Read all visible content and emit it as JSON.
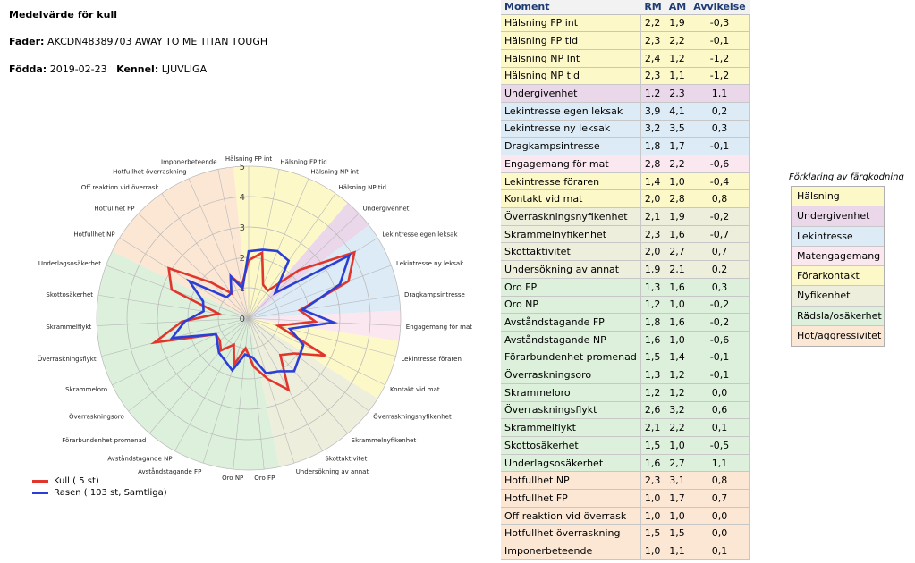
{
  "header": {
    "title": "Medelvärde för kull",
    "fader_label": "Fader:",
    "fader_value": "AKCDN48389703   AWAY TO ME TITAN TOUGH",
    "fodda_label": "Födda:",
    "fodda_value": "2019-02-23",
    "kennel_label": "Kennel:",
    "kennel_value": "LJUVLIGA"
  },
  "colors": {
    "Hälsning": "#fdf8c8",
    "Undergivenhet": "#ead7ea",
    "Lekintresse": "#dcebf6",
    "Matengagemang": "#fbe7ef",
    "Förarkontakt": "#fdf8c8",
    "Nyfikenhet": "#eeeedd",
    "Rädsla/osäkerhet": "#dcf0dc",
    "Hot/aggressivitet": "#fbe7d4",
    "kull_line": "#e0362c",
    "rasen_line": "#2b3fd6"
  },
  "table": {
    "headers": [
      "Moment",
      "RM",
      "AM",
      "Avvikelse"
    ],
    "rows": [
      {
        "moment": "Hälsning FP int",
        "rm": "2,2",
        "am": "1,9",
        "dev": "-0,3",
        "cat": "Hälsning"
      },
      {
        "moment": "Hälsning FP tid",
        "rm": "2,3",
        "am": "2,2",
        "dev": "-0,1",
        "cat": "Hälsning"
      },
      {
        "moment": "Hälsning NP Int",
        "rm": "2,4",
        "am": "1,2",
        "dev": "-1,2",
        "cat": "Hälsning"
      },
      {
        "moment": "Hälsning NP tid",
        "rm": "2,3",
        "am": "1,1",
        "dev": "-1,2",
        "cat": "Hälsning"
      },
      {
        "moment": "Undergivenhet",
        "rm": "1,2",
        "am": "2,3",
        "dev": "1,1",
        "cat": "Undergivenhet"
      },
      {
        "moment": "Lekintresse egen leksak",
        "rm": "3,9",
        "am": "4,1",
        "dev": "0,2",
        "cat": "Lekintresse"
      },
      {
        "moment": "Lekintresse ny leksak",
        "rm": "3,2",
        "am": "3,5",
        "dev": "0,3",
        "cat": "Lekintresse"
      },
      {
        "moment": "Dragkampsintresse",
        "rm": "1,8",
        "am": "1,7",
        "dev": "-0,1",
        "cat": "Lekintresse"
      },
      {
        "moment": "Engagemang för mat",
        "rm": "2,8",
        "am": "2,2",
        "dev": "-0,6",
        "cat": "Matengagemang"
      },
      {
        "moment": "Lekintresse föraren",
        "rm": "1,4",
        "am": "1,0",
        "dev": "-0,4",
        "cat": "Förarkontakt"
      },
      {
        "moment": "Kontakt vid mat",
        "rm": "2,0",
        "am": "2,8",
        "dev": "0,8",
        "cat": "Förarkontakt"
      },
      {
        "moment": "Överraskningsnyfikenhet",
        "rm": "2,1",
        "am": "1,9",
        "dev": "-0,2",
        "cat": "Nyfikenhet"
      },
      {
        "moment": "Skrammelnyfikenhet",
        "rm": "2,3",
        "am": "1,6",
        "dev": "-0,7",
        "cat": "Nyfikenhet"
      },
      {
        "moment": "Skottaktivitet",
        "rm": "2,0",
        "am": "2,7",
        "dev": "0,7",
        "cat": "Nyfikenhet"
      },
      {
        "moment": "Undersökning av annat",
        "rm": "1,9",
        "am": "2,1",
        "dev": "0,2",
        "cat": "Nyfikenhet"
      },
      {
        "moment": "Oro FP",
        "rm": "1,3",
        "am": "1,6",
        "dev": "0,3",
        "cat": "Rädsla/osäkerhet"
      },
      {
        "moment": "Oro NP",
        "rm": "1,2",
        "am": "1,0",
        "dev": "-0,2",
        "cat": "Rädsla/osäkerhet"
      },
      {
        "moment": "Avståndstagande FP",
        "rm": "1,8",
        "am": "1,6",
        "dev": "-0,2",
        "cat": "Rädsla/osäkerhet"
      },
      {
        "moment": "Avståndstagande NP",
        "rm": "1,6",
        "am": "1,0",
        "dev": "-0,6",
        "cat": "Rädsla/osäkerhet"
      },
      {
        "moment": "Förarbundenhet promenad",
        "rm": "1,5",
        "am": "1,4",
        "dev": "-0,1",
        "cat": "Rädsla/osäkerhet"
      },
      {
        "moment": "Överraskningsoro",
        "rm": "1,3",
        "am": "1,2",
        "dev": "-0,1",
        "cat": "Rädsla/osäkerhet"
      },
      {
        "moment": "Skrammeloro",
        "rm": "1,2",
        "am": "1,2",
        "dev": "0,0",
        "cat": "Rädsla/osäkerhet"
      },
      {
        "moment": "Överraskningsflykt",
        "rm": "2,6",
        "am": "3,2",
        "dev": "0,6",
        "cat": "Rädsla/osäkerhet"
      },
      {
        "moment": "Skrammelflykt",
        "rm": "2,1",
        "am": "2,2",
        "dev": "0,1",
        "cat": "Rädsla/osäkerhet"
      },
      {
        "moment": "Skottosäkerhet",
        "rm": "1,5",
        "am": "1,0",
        "dev": "-0,5",
        "cat": "Rädsla/osäkerhet"
      },
      {
        "moment": "Underlagsosäkerhet",
        "rm": "1,6",
        "am": "2,7",
        "dev": "1,1",
        "cat": "Rädsla/osäkerhet"
      },
      {
        "moment": "Hotfullhet NP",
        "rm": "2,3",
        "am": "3,1",
        "dev": "0,8",
        "cat": "Hot/aggressivitet"
      },
      {
        "moment": "Hotfullhet FP",
        "rm": "1,0",
        "am": "1,7",
        "dev": "0,7",
        "cat": "Hot/aggressivitet"
      },
      {
        "moment": "Off reaktion vid överrask",
        "rm": "1,0",
        "am": "1,0",
        "dev": "0,0",
        "cat": "Hot/aggressivitet"
      },
      {
        "moment": "Hotfullhet överraskning",
        "rm": "1,5",
        "am": "1,5",
        "dev": "0,0",
        "cat": "Hot/aggressivitet"
      },
      {
        "moment": "Imponerbeteende",
        "rm": "1,0",
        "am": "1,1",
        "dev": "0,1",
        "cat": "Hot/aggressivitet"
      }
    ]
  },
  "color_legend": {
    "title": "Förklaring av färgkodning",
    "items": [
      "Hälsning",
      "Undergivenhet",
      "Lekintresse",
      "Matengagemang",
      "Förarkontakt",
      "Nyfikenhet",
      "Rädsla/osäkerhet",
      "Hot/aggressivitet"
    ]
  },
  "chart_data": {
    "type": "radar",
    "title": "",
    "rlim": [
      0,
      5
    ],
    "ticks": [
      "0",
      "1",
      "2",
      "3",
      "4",
      "5"
    ],
    "axes": [
      "Hälsning FP int",
      "Hälsning FP tid",
      "Hälsning NP int",
      "Hälsning NP tid",
      "Undergivenhet",
      "Lekintresse egen leksak",
      "Lekintresse ny leksak",
      "Dragkampsintresse",
      "Engagemang för mat",
      "Lekintresse föraren",
      "Kontakt vid mat",
      "Överraskningsnyfikenhet",
      "Skrammelnyfikenhet",
      "Skottaktivitet",
      "Undersökning av annat",
      "Oro FP",
      "Oro NP",
      "Avståndstagande FP",
      "Avståndstagande NP",
      "Förarbundenhet promenad",
      "Överraskningsoro",
      "Skrammeloro",
      "Överraskningsflykt",
      "Skrammelflykt",
      "Skottosäkerhet",
      "Underlagsosäkerhet",
      "Hotfullhet NP",
      "Hotfullhet FP",
      "Off reaktion vid överrask",
      "Hotfullhet överraskning",
      "Imponerbeteende"
    ],
    "axis_categories": [
      "Hälsning",
      "Hälsning",
      "Hälsning",
      "Hälsning",
      "Undergivenhet",
      "Lekintresse",
      "Lekintresse",
      "Lekintresse",
      "Matengagemang",
      "Förarkontakt",
      "Förarkontakt",
      "Nyfikenhet",
      "Nyfikenhet",
      "Nyfikenhet",
      "Nyfikenhet",
      "Rädsla/osäkerhet",
      "Rädsla/osäkerhet",
      "Rädsla/osäkerhet",
      "Rädsla/osäkerhet",
      "Rädsla/osäkerhet",
      "Rädsla/osäkerhet",
      "Rädsla/osäkerhet",
      "Rädsla/osäkerhet",
      "Rädsla/osäkerhet",
      "Rädsla/osäkerhet",
      "Rädsla/osäkerhet",
      "Hot/aggressivitet",
      "Hot/aggressivitet",
      "Hot/aggressivitet",
      "Hot/aggressivitet",
      "Hot/aggressivitet"
    ],
    "series": [
      {
        "name": "Kull ( 5 st)",
        "values": [
          1.9,
          2.2,
          1.2,
          1.1,
          2.3,
          4.1,
          3.5,
          1.7,
          2.2,
          1.0,
          2.8,
          1.9,
          1.6,
          2.7,
          2.1,
          1.6,
          1.0,
          1.6,
          1.0,
          1.4,
          1.2,
          1.2,
          3.2,
          2.2,
          1.0,
          2.7,
          3.1,
          1.7,
          1.0,
          1.5,
          1.1
        ]
      },
      {
        "name": "Rasen ( 103 st, Samtliga)",
        "values": [
          2.2,
          2.3,
          2.4,
          2.3,
          1.2,
          3.9,
          3.2,
          1.8,
          2.8,
          1.4,
          2.0,
          2.1,
          2.3,
          2.0,
          1.9,
          1.3,
          1.2,
          1.8,
          1.6,
          1.5,
          1.3,
          1.2,
          2.6,
          2.1,
          1.5,
          1.6,
          2.3,
          1.0,
          1.0,
          1.5,
          1.0
        ]
      }
    ]
  }
}
